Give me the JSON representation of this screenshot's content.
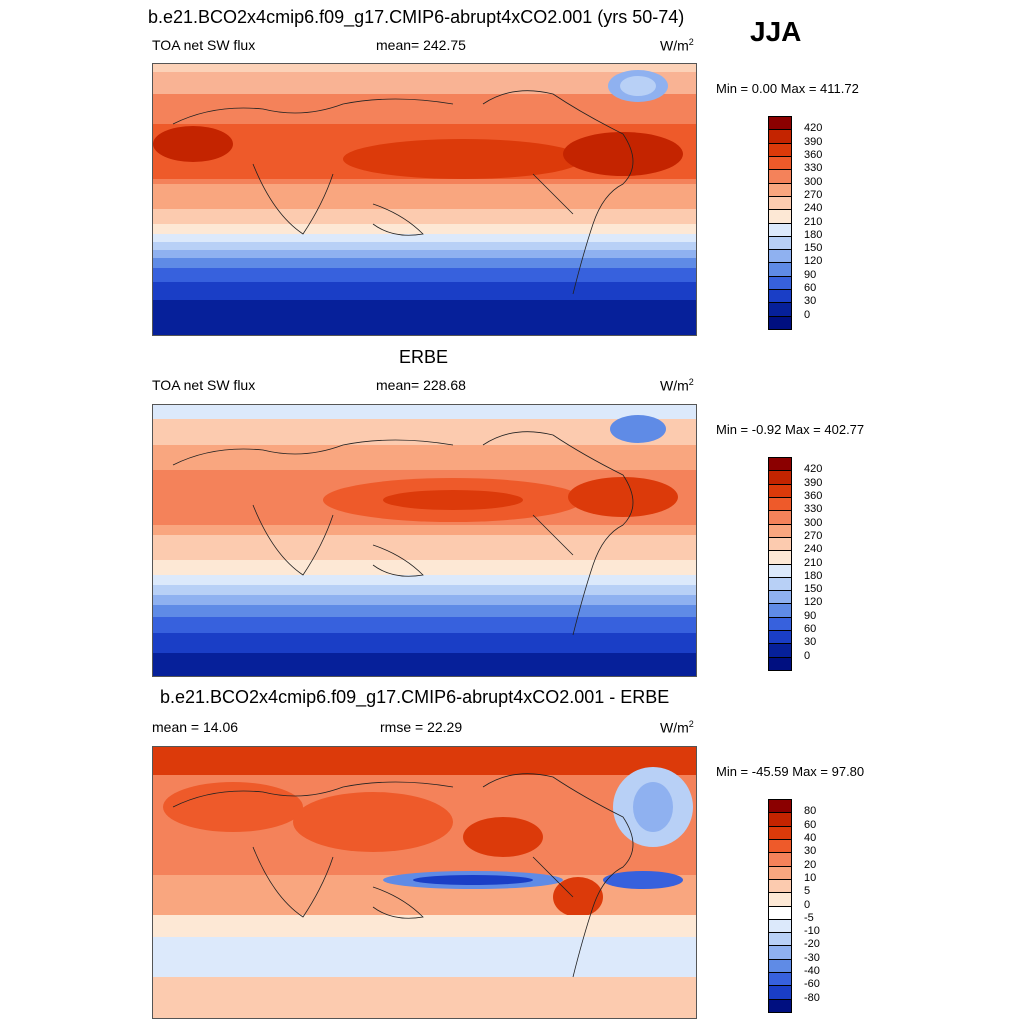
{
  "season": "JJA",
  "panels": [
    {
      "id": "model",
      "title": "b.e21.BCO2x4cmip6.f09_g17.CMIP6-abrupt4xCO2.001 (yrs 50-74)",
      "left_label": "TOA net SW flux",
      "center_label": "mean= 242.75",
      "units": "W/m",
      "units_sup": "2",
      "minmax": "Min =   0.00 Max = 411.72",
      "levels": [
        "420",
        "390",
        "360",
        "330",
        "300",
        "270",
        "240",
        "210",
        "180",
        "150",
        "120",
        "90",
        "60",
        "30",
        "0"
      ],
      "colors": [
        "#8b0000",
        "#c42400",
        "#dc3a0a",
        "#ee5a2a",
        "#f4825a",
        "#f9a67f",
        "#fccbaf",
        "#fde8d5",
        "#dce9fb",
        "#b8d0f6",
        "#8fb1f0",
        "#5f8be6",
        "#3761dd",
        "#1a3ec6",
        "#06209a",
        "#000f80"
      ]
    },
    {
      "id": "obs",
      "title": "ERBE",
      "left_label": "TOA net SW flux",
      "center_label": "mean= 228.68",
      "units": "W/m",
      "units_sup": "2",
      "minmax": "Min =  -0.92 Max = 402.77",
      "levels": [
        "420",
        "390",
        "360",
        "330",
        "300",
        "270",
        "240",
        "210",
        "180",
        "150",
        "120",
        "90",
        "60",
        "30",
        "0"
      ],
      "colors": [
        "#8b0000",
        "#c42400",
        "#dc3a0a",
        "#ee5a2a",
        "#f4825a",
        "#f9a67f",
        "#fccbaf",
        "#fde8d5",
        "#dce9fb",
        "#b8d0f6",
        "#8fb1f0",
        "#5f8be6",
        "#3761dd",
        "#1a3ec6",
        "#06209a",
        "#000f80"
      ]
    },
    {
      "id": "diff",
      "title": "b.e21.BCO2x4cmip6.f09_g17.CMIP6-abrupt4xCO2.001 - ERBE",
      "left_label": "mean =  14.06",
      "center_label": "rmse =  22.29",
      "units": "W/m",
      "units_sup": "2",
      "minmax": "Min = -45.59 Max =  97.80",
      "levels": [
        "80",
        "60",
        "40",
        "30",
        "20",
        "10",
        "5",
        "0",
        "-5",
        "-10",
        "-20",
        "-30",
        "-40",
        "-60",
        "-80"
      ],
      "colors": [
        "#8b0000",
        "#c42400",
        "#dc3a0a",
        "#ee5a2a",
        "#f4825a",
        "#f9a67f",
        "#fccbaf",
        "#fde8d5",
        "#ffffff",
        "#dce9fb",
        "#b8d0f6",
        "#8fb1f0",
        "#5f8be6",
        "#3761dd",
        "#1a3ec6",
        "#000f80"
      ]
    }
  ]
}
